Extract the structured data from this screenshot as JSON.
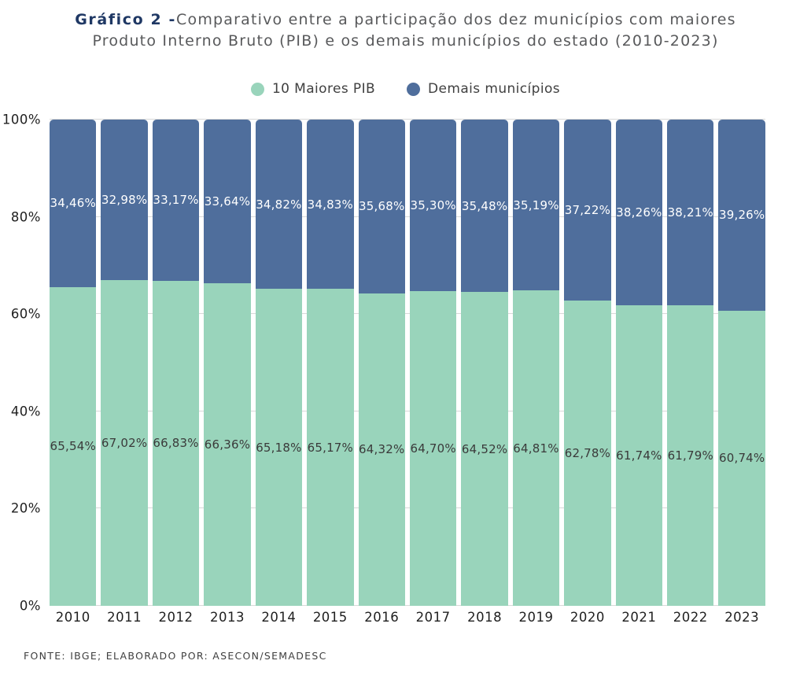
{
  "title": {
    "prefix": "Gráfico 2 -",
    "line1": "Comparativo entre a participação dos dez municípios com maiores",
    "line2": "Produto Interno Bruto (PIB) e os demais municípios do estado (2010-2023)"
  },
  "legend": [
    {
      "label": "10 Maiores PIB",
      "color": "#99d4bb"
    },
    {
      "label": "Demais municípios",
      "color": "#4f6e9c"
    }
  ],
  "footer": "FONTE: IBGE; ELABORADO POR: ASECON/SEMADESC",
  "colors": {
    "series_green": "#99d4bb",
    "series_blue": "#4f6e9c",
    "title_accent": "#1f3864",
    "title_text": "#58595b",
    "grid": "#d9d9d9"
  },
  "chart_data": {
    "type": "bar",
    "stacked": true,
    "unit": "percent",
    "title": "Comparativo entre a participação dos dez municípios com maiores Produto Interno Bruto (PIB) e os demais municípios do estado (2010-2023)",
    "categories": [
      "2010",
      "2011",
      "2012",
      "2013",
      "2014",
      "2015",
      "2016",
      "2017",
      "2018",
      "2019",
      "2020",
      "2021",
      "2022",
      "2023"
    ],
    "series": [
      {
        "name": "10 Maiores PIB",
        "color": "#99d4bb",
        "values": [
          65.54,
          67.02,
          66.83,
          66.36,
          65.18,
          65.17,
          64.32,
          64.7,
          64.52,
          64.81,
          62.78,
          61.74,
          61.79,
          60.74
        ],
        "labels": [
          "65,54%",
          "67,02%",
          "66,83%",
          "66,36%",
          "65,18%",
          "65,17%",
          "64,32%",
          "64,70%",
          "64,52%",
          "64,81%",
          "62,78%",
          "61,74%",
          "61,79%",
          "60,74%"
        ]
      },
      {
        "name": "Demais municípios",
        "color": "#4f6e9c",
        "values": [
          34.46,
          32.98,
          33.17,
          33.64,
          34.82,
          34.83,
          35.68,
          35.3,
          35.48,
          35.19,
          37.22,
          38.26,
          38.21,
          39.26
        ],
        "labels": [
          "34,46%",
          "32,98%",
          "33,17%",
          "33,64%",
          "34,82%",
          "34,83%",
          "35,68%",
          "35,30%",
          "35,48%",
          "35,19%",
          "37,22%",
          "38,26%",
          "38,21%",
          "39,26%"
        ]
      }
    ],
    "y_axis": {
      "min": 0,
      "max": 100,
      "tick_step": 20,
      "ticks": [
        "0%",
        "20%",
        "40%",
        "60%",
        "80%",
        "100%"
      ]
    },
    "grid": true,
    "legend_position": "top",
    "xlabel": "",
    "ylabel": ""
  }
}
